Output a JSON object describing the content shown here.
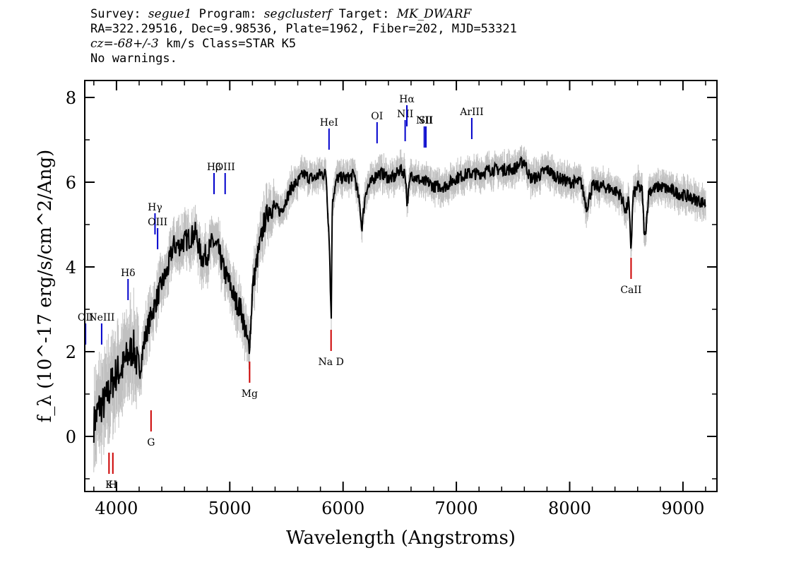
{
  "header": {
    "survey_label": "Survey:",
    "survey": "segue1",
    "program_label": "Program:",
    "program": "segclusterf",
    "target_label": "Target:",
    "target": "MK_DWARF",
    "line2": "RA=322.29516, Dec=9.98536, Plate=1962, Fiber=202, MJD=53321",
    "cz_label": "cz=",
    "cz": "-68+/-3",
    "class_text": "km/s Class=STAR K5",
    "warnings": "No warnings."
  },
  "chart_data": {
    "type": "line",
    "title": "",
    "xlabel": "Wavelength (Angstroms)",
    "ylabel": "f_λ (10^-17 erg/s/cm^2/Ang)",
    "xlim": [
      3720,
      9300
    ],
    "ylim": [
      -1.3,
      8.4
    ],
    "xticks": [
      4000,
      5000,
      6000,
      7000,
      8000,
      9000
    ],
    "yticks": [
      0,
      2,
      4,
      6,
      8
    ],
    "series": [
      {
        "color": "#000000",
        "x": [
          3800,
          3850,
          3900,
          3950,
          4000,
          4050,
          4100,
          4150,
          4200,
          4250,
          4300,
          4350,
          4400,
          4450,
          4500,
          4550,
          4600,
          4650,
          4700,
          4750,
          4800,
          4850,
          4900,
          4950,
          5000,
          5050,
          5100,
          5150,
          5170,
          5185,
          5200,
          5250,
          5300,
          5350,
          5400,
          5450,
          5500,
          5550,
          5600,
          5650,
          5700,
          5750,
          5800,
          5850,
          5880,
          5890,
          5896,
          5905,
          5950,
          6000,
          6050,
          6100,
          6150,
          6165,
          6200,
          6250,
          6300,
          6350,
          6400,
          6450,
          6500,
          6550,
          6565,
          6600,
          6650,
          6700,
          6750,
          6800,
          6850,
          6900,
          6950,
          7000,
          7100,
          7200,
          7300,
          7400,
          7500,
          7600,
          7650,
          7700,
          7800,
          7900,
          8000,
          8100,
          8150,
          8200,
          8300,
          8400,
          8450,
          8498,
          8520,
          8542,
          8560,
          8600,
          8640,
          8662,
          8700,
          8800,
          8900,
          9000,
          9100,
          9200
        ],
        "y": [
          0.3,
          0.7,
          0.8,
          1.2,
          1.5,
          1.6,
          1.9,
          2.1,
          1.5,
          2.3,
          2.8,
          3.2,
          3.6,
          3.9,
          4.5,
          4.5,
          4.6,
          4.7,
          4.8,
          4.2,
          4.3,
          4.6,
          4.4,
          3.9,
          3.6,
          3.2,
          3.0,
          2.3,
          2.1,
          2.6,
          3.5,
          4.3,
          5.0,
          5.4,
          5.4,
          5.3,
          5.6,
          5.9,
          6.0,
          6.2,
          6.1,
          6.1,
          6.2,
          6.2,
          4.5,
          3.2,
          2.9,
          5.6,
          6.1,
          6.1,
          6.1,
          6.2,
          5.4,
          4.9,
          5.8,
          6.0,
          6.2,
          6.2,
          6.1,
          6.1,
          6.3,
          6.2,
          5.5,
          6.2,
          6.1,
          6.0,
          6.0,
          5.9,
          5.9,
          5.9,
          6.0,
          6.1,
          6.2,
          6.2,
          6.3,
          6.3,
          6.3,
          6.5,
          6.1,
          6.1,
          6.3,
          6.1,
          6.0,
          6.0,
          5.4,
          5.9,
          5.9,
          5.8,
          5.7,
          5.3,
          5.6,
          4.4,
          5.7,
          5.9,
          5.8,
          4.6,
          5.8,
          5.9,
          5.8,
          5.7,
          5.6,
          5.5
        ]
      }
    ],
    "lines": [
      {
        "label": "OII",
        "x": 3727,
        "kind": "emission",
        "y": 2.7
      },
      {
        "label": "NeIII",
        "x": 3869,
        "kind": "emission",
        "y": 2.7
      },
      {
        "label": "Hδ",
        "x": 4102,
        "kind": "emission",
        "y": 3.75
      },
      {
        "label": "Hγ",
        "x": 4340,
        "kind": "emission",
        "y": 5.3
      },
      {
        "label": "OIII",
        "x": 4363,
        "kind": "emission",
        "y": 4.95
      },
      {
        "label": "Hβ",
        "x": 4861,
        "kind": "emission",
        "y": 6.25
      },
      {
        "label": "OIII",
        "x": 4959,
        "kind": "emission",
        "y": 6.25
      },
      {
        "label": "HeI",
        "x": 5876,
        "kind": "emission",
        "y": 7.3
      },
      {
        "label": "OI",
        "x": 6300,
        "kind": "emission",
        "y": 7.45
      },
      {
        "label": "NII",
        "x": 6548,
        "kind": "emission",
        "y": 7.5
      },
      {
        "label": "Hα",
        "x": 6563,
        "kind": "emission",
        "y": 7.85
      },
      {
        "label": "NII",
        "x": 6717,
        "kind": "emission",
        "y": 7.35
      },
      {
        "label": "SII",
        "x": 6731,
        "kind": "emission",
        "y": 7.35
      },
      {
        "label": "ArIII",
        "x": 7136,
        "kind": "emission",
        "y": 7.55
      },
      {
        "label": "K",
        "x": 3934,
        "kind": "absorption",
        "y": -0.95
      },
      {
        "label": "H",
        "x": 3968,
        "kind": "absorption",
        "y": -0.95
      },
      {
        "label": "G",
        "x": 4305,
        "kind": "absorption",
        "y": 0.05
      },
      {
        "label": "Mg",
        "x": 5175,
        "kind": "absorption",
        "y": 1.2
      },
      {
        "label": "Na D",
        "x": 5894,
        "kind": "absorption",
        "y": 1.95
      },
      {
        "label": "CaII",
        "x": 8542,
        "kind": "absorption",
        "y": 3.65
      }
    ]
  },
  "colors": {
    "flux": "#000000",
    "error": "#c0c0c0",
    "emission": "#0000cc",
    "absorption": "#cc0000"
  }
}
